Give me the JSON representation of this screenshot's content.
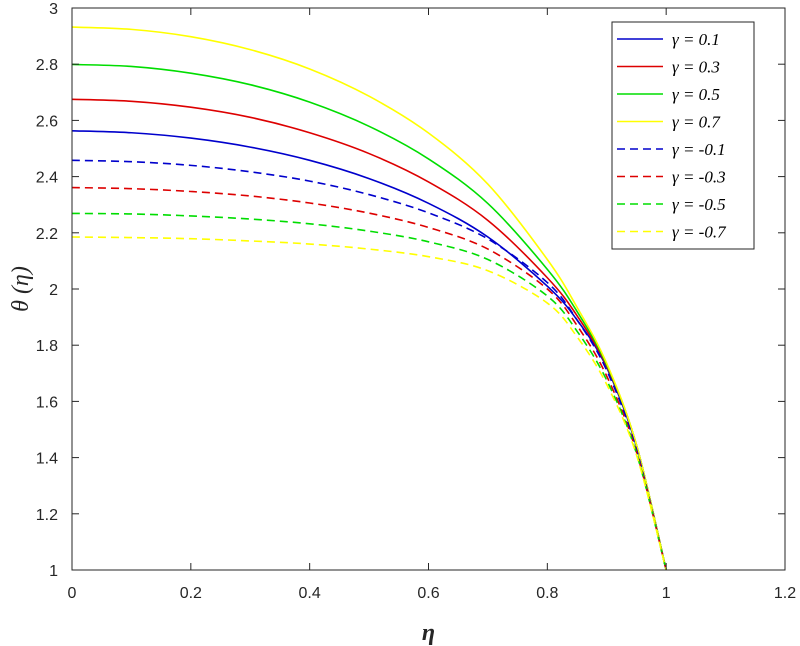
{
  "chart_data": {
    "type": "line",
    "title": "",
    "xlabel": "η",
    "ylabel": "θ (η)",
    "xlim": [
      0,
      1.2
    ],
    "ylim": [
      1,
      3
    ],
    "xticks": [
      "0",
      "0.2",
      "0.4",
      "0.6",
      "0.8",
      "1",
      "1.2"
    ],
    "yticks": [
      "1",
      "1.2",
      "1.4",
      "1.6",
      "1.8",
      "2",
      "2.2",
      "2.4",
      "2.6",
      "2.8",
      "3"
    ],
    "grid": false,
    "legend_position": "top-right",
    "x": [
      0,
      0.1,
      0.2,
      0.3,
      0.4,
      0.5,
      0.6,
      0.7,
      0.8,
      0.85,
      0.9,
      0.95,
      1.0
    ],
    "series": [
      {
        "name": "γ = 0.1",
        "color": "#0000cc",
        "dash": "solid",
        "values": [
          2.563,
          2.556,
          2.537,
          2.505,
          2.458,
          2.393,
          2.305,
          2.185,
          2.01,
          1.89,
          1.72,
          1.44,
          1.0
        ]
      },
      {
        "name": "γ = 0.3",
        "color": "#dd0000",
        "dash": "solid",
        "values": [
          2.675,
          2.668,
          2.647,
          2.611,
          2.556,
          2.482,
          2.381,
          2.244,
          2.04,
          1.905,
          1.725,
          1.445,
          1.0
        ]
      },
      {
        "name": "γ = 0.5",
        "color": "#00dd00",
        "dash": "solid",
        "values": [
          2.799,
          2.792,
          2.768,
          2.727,
          2.665,
          2.579,
          2.463,
          2.304,
          2.07,
          1.92,
          1.73,
          1.445,
          1.0
        ]
      },
      {
        "name": "γ = 0.7",
        "color": "#ffff00",
        "dash": "solid",
        "values": [
          2.932,
          2.924,
          2.898,
          2.852,
          2.783,
          2.686,
          2.555,
          2.373,
          2.105,
          1.935,
          1.735,
          1.445,
          1.0
        ]
      },
      {
        "name": "γ = -0.1",
        "color": "#0000cc",
        "dash": "dashed",
        "values": [
          2.458,
          2.453,
          2.44,
          2.417,
          2.384,
          2.336,
          2.271,
          2.178,
          2.023,
          1.89,
          1.71,
          1.43,
          1.0
        ]
      },
      {
        "name": "γ = -0.3",
        "color": "#dd0000",
        "dash": "dashed",
        "values": [
          2.361,
          2.357,
          2.347,
          2.331,
          2.306,
          2.27,
          2.219,
          2.142,
          2.0,
          1.87,
          1.69,
          1.42,
          1.0
        ]
      },
      {
        "name": "γ = -0.5",
        "color": "#00dd00",
        "dash": "dashed",
        "values": [
          2.269,
          2.267,
          2.26,
          2.249,
          2.232,
          2.206,
          2.168,
          2.105,
          1.975,
          1.85,
          1.675,
          1.415,
          1.0
        ]
      },
      {
        "name": "γ = -0.7",
        "color": "#ffff00",
        "dash": "dashed",
        "values": [
          2.185,
          2.183,
          2.179,
          2.171,
          2.16,
          2.142,
          2.115,
          2.065,
          1.95,
          1.83,
          1.66,
          1.41,
          1.0
        ]
      }
    ]
  }
}
